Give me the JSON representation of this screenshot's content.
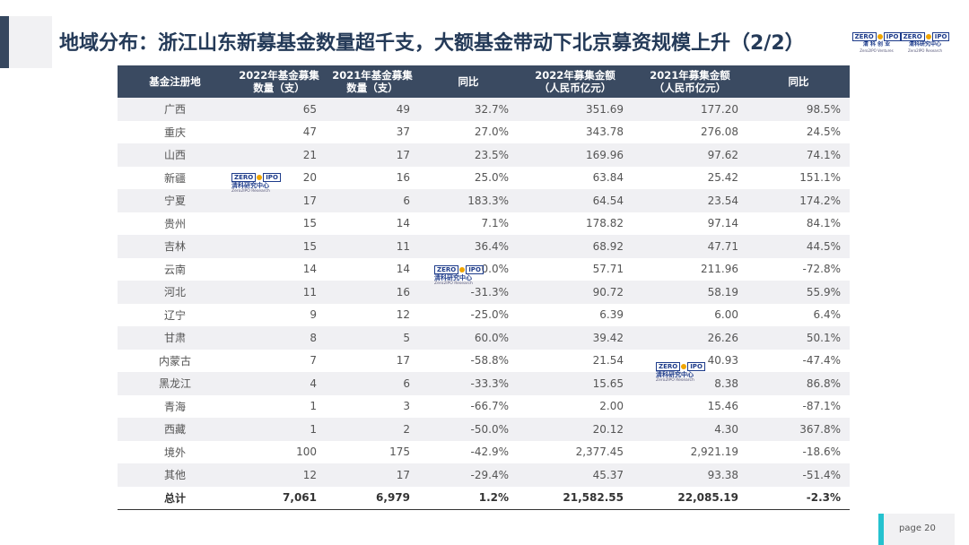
{
  "title": "地域分布：浙江山东新募基金数量超千支，大额基金带动下北京募资规模上升（2/2）",
  "logos": {
    "ventures": {
      "zero": "ZERO",
      "ipo": "IPO",
      "cn": "清 科 创 业",
      "en": "Zero2IPO Ventures"
    },
    "research": {
      "zero": "ZERO",
      "ipo": "IPO",
      "cn": "清科研究中心",
      "en": "Zero2IPO Research"
    }
  },
  "watermark": {
    "zero": "ZERO",
    "ipo": "IPO",
    "cn": "清科研究中心",
    "en": "Zero2IPO Research"
  },
  "table": {
    "headers": [
      "基金注册地",
      "2022年基金募集\n数量（支）",
      "2021年基金募集\n数量（支）",
      "同比",
      "2022年募集金额\n（人民币亿元）",
      "2021年募集金额\n（人民币亿元）",
      "同比"
    ],
    "rows": [
      [
        "广西",
        "65",
        "49",
        "32.7%",
        "351.69",
        "177.20",
        "98.5%"
      ],
      [
        "重庆",
        "47",
        "37",
        "27.0%",
        "343.78",
        "276.08",
        "24.5%"
      ],
      [
        "山西",
        "21",
        "17",
        "23.5%",
        "169.96",
        "97.62",
        "74.1%"
      ],
      [
        "新疆",
        "20",
        "16",
        "25.0%",
        "63.84",
        "25.42",
        "151.1%"
      ],
      [
        "宁夏",
        "17",
        "6",
        "183.3%",
        "64.54",
        "23.54",
        "174.2%"
      ],
      [
        "贵州",
        "15",
        "14",
        "7.1%",
        "178.82",
        "97.14",
        "84.1%"
      ],
      [
        "吉林",
        "15",
        "11",
        "36.4%",
        "68.92",
        "47.71",
        "44.5%"
      ],
      [
        "云南",
        "14",
        "14",
        "0.0%",
        "57.71",
        "211.96",
        "-72.8%"
      ],
      [
        "河北",
        "11",
        "16",
        "-31.3%",
        "90.72",
        "58.19",
        "55.9%"
      ],
      [
        "辽宁",
        "9",
        "12",
        "-25.0%",
        "6.39",
        "6.00",
        "6.4%"
      ],
      [
        "甘肃",
        "8",
        "5",
        "60.0%",
        "39.42",
        "26.26",
        "50.1%"
      ],
      [
        "内蒙古",
        "7",
        "17",
        "-58.8%",
        "21.54",
        "40.93",
        "-47.4%"
      ],
      [
        "黑龙江",
        "4",
        "6",
        "-33.3%",
        "15.65",
        "8.38",
        "86.8%"
      ],
      [
        "青海",
        "1",
        "3",
        "-66.7%",
        "2.00",
        "15.46",
        "-87.1%"
      ],
      [
        "西藏",
        "1",
        "2",
        "-50.0%",
        "20.12",
        "4.30",
        "367.8%"
      ],
      [
        "境外",
        "100",
        "175",
        "-42.9%",
        "2,377.45",
        "2,921.19",
        "-18.6%"
      ],
      [
        "其他",
        "12",
        "17",
        "-29.4%",
        "45.37",
        "93.38",
        "-51.4%"
      ]
    ],
    "total": [
      "总计",
      "7,061",
      "6,979",
      "1.2%",
      "21,582.55",
      "22,085.19",
      "-2.3%"
    ]
  },
  "footer": {
    "page_label": "page  20"
  }
}
